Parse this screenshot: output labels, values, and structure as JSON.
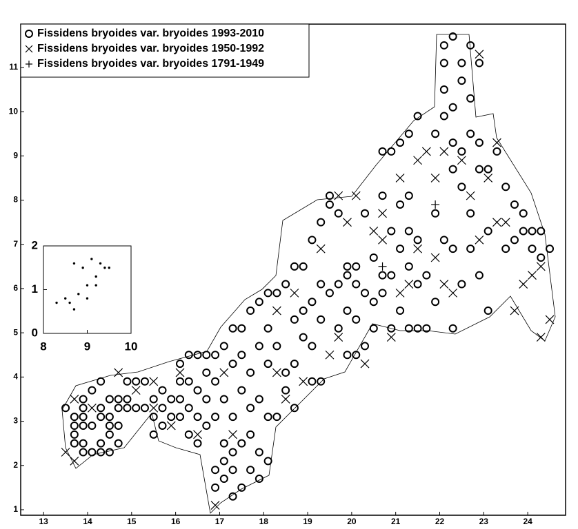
{
  "chart_data": [
    {
      "type": "scatter",
      "legend": "upper left",
      "xlim": [
        12.48,
        24.86
      ],
      "ylim": [
        0.875,
        11.98
      ],
      "xticks": [
        13,
        14,
        15,
        16,
        17,
        18,
        19,
        20,
        21,
        22,
        23,
        24
      ],
      "yticks": [
        1,
        2,
        3,
        4,
        5,
        6,
        7,
        8,
        9,
        10,
        11
      ],
      "series": [
        {
          "name": "Fissidens bryoides var. bryoides 1993-2010",
          "marker": "circle",
          "color": "#000000",
          "x": [
            13.5,
            13.7,
            13.7,
            13.7,
            13.7,
            13.9,
            13.9,
            13.9,
            13.9,
            13.9,
            13.9,
            14.1,
            14.1,
            14.1,
            14.3,
            14.3,
            14.3,
            14.3,
            14.3,
            14.5,
            14.5,
            14.5,
            14.5,
            14.5,
            14.7,
            14.7,
            14.7,
            14.7,
            14.9,
            14.9,
            14.9,
            15.1,
            15.1,
            15.3,
            15.3,
            15.5,
            15.5,
            15.5,
            15.7,
            15.7,
            15.7,
            15.9,
            15.9,
            16.1,
            16.1,
            16.1,
            16.1,
            16.3,
            16.3,
            16.3,
            16.3,
            16.5,
            16.5,
            16.5,
            16.5,
            16.7,
            16.7,
            16.7,
            16.7,
            16.9,
            16.9,
            16.9,
            16.9,
            16.9,
            17.1,
            17.1,
            17.1,
            17.1,
            17.1,
            17.3,
            17.3,
            17.3,
            17.3,
            17.3,
            17.3,
            17.5,
            17.5,
            17.5,
            17.5,
            17.5,
            17.7,
            17.7,
            17.7,
            17.7,
            17.7,
            17.9,
            17.9,
            17.9,
            17.9,
            17.9,
            18.1,
            18.1,
            18.1,
            18.1,
            18.1,
            18.3,
            18.3,
            18.3,
            18.5,
            18.5,
            18.5,
            18.7,
            18.7,
            18.7,
            18.7,
            18.9,
            18.9,
            18.9,
            19.1,
            19.1,
            19.1,
            19.1,
            19.3,
            19.3,
            19.3,
            19.3,
            19.5,
            19.5,
            19.5,
            19.7,
            19.7,
            19.7,
            19.9,
            19.9,
            19.9,
            19.9,
            20.1,
            20.1,
            20.1,
            20.1,
            20.3,
            20.3,
            20.3,
            20.5,
            20.5,
            20.5,
            20.7,
            20.7,
            20.7,
            20.7,
            20.9,
            20.9,
            20.9,
            20.9,
            21.1,
            21.1,
            21.1,
            21.1,
            21.3,
            21.3,
            21.3,
            21.3,
            21.3,
            21.5,
            21.5,
            21.5,
            21.5,
            21.7,
            21.7,
            21.9,
            21.9,
            21.9,
            22.1,
            22.1,
            22.1,
            22.1,
            22.1,
            22.3,
            22.3,
            22.3,
            22.3,
            22.3,
            22.3,
            22.5,
            22.5,
            22.5,
            22.5,
            22.5,
            22.7,
            22.7,
            22.7,
            22.7,
            22.7,
            22.9,
            22.9,
            22.9,
            22.9,
            23.1,
            23.1,
            23.1,
            23.3,
            23.5,
            23.5,
            23.7,
            23.7,
            23.9,
            23.9,
            24.1,
            24.1,
            24.3,
            24.3,
            24.5
          ],
          "values": [
            3.3,
            3.1,
            2.9,
            2.7,
            2.5,
            2.3,
            2.5,
            2.9,
            3.1,
            3.3,
            3.5,
            2.3,
            2.9,
            3.7,
            2.3,
            2.5,
            3.1,
            3.3,
            3.9,
            2.3,
            2.7,
            2.9,
            3.1,
            3.5,
            2.5,
            2.9,
            3.3,
            3.5,
            3.3,
            3.5,
            3.9,
            3.3,
            3.9,
            3.3,
            3.9,
            2.7,
            3.1,
            3.5,
            2.9,
            3.3,
            3.7,
            3.1,
            3.5,
            3.1,
            3.5,
            3.9,
            4.3,
            2.7,
            3.3,
            3.9,
            4.5,
            2.5,
            3.1,
            3.7,
            4.5,
            2.9,
            3.5,
            4.1,
            4.5,
            1.5,
            1.9,
            3.1,
            3.9,
            4.5,
            1.7,
            2.1,
            2.5,
            3.5,
            4.7,
            1.3,
            1.9,
            2.3,
            3.1,
            4.3,
            5.1,
            1.5,
            2.5,
            3.7,
            4.5,
            5.1,
            1.9,
            2.7,
            3.3,
            4.1,
            5.5,
            1.7,
            2.3,
            3.5,
            4.7,
            5.7,
            2.1,
            3.1,
            4.3,
            5.1,
            5.9,
            3.1,
            4.7,
            5.9,
            3.7,
            4.1,
            6.1,
            3.3,
            4.3,
            5.3,
            6.5,
            4.9,
            5.5,
            6.5,
            3.9,
            4.7,
            5.7,
            7.1,
            3.9,
            5.3,
            6.1,
            7.5,
            5.9,
            7.9,
            8.1,
            5.1,
            6.1,
            7.7,
            4.5,
            5.5,
            6.3,
            6.5,
            4.5,
            5.3,
            6.1,
            6.5,
            4.7,
            5.9,
            7.7,
            5.1,
            5.7,
            6.7,
            5.9,
            6.3,
            8.1,
            9.1,
            5.1,
            6.3,
            7.3,
            9.1,
            5.5,
            6.9,
            7.9,
            9.3,
            5.1,
            6.5,
            7.3,
            8.1,
            9.5,
            5.1,
            6.1,
            7.1,
            9.9,
            5.1,
            6.3,
            5.7,
            7.7,
            9.5,
            7.1,
            9.9,
            10.5,
            11.1,
            11.5,
            5.1,
            6.9,
            8.7,
            9.3,
            10.1,
            11.7,
            6.1,
            8.3,
            9.1,
            10.7,
            11.1,
            6.9,
            7.7,
            9.5,
            10.3,
            11.5,
            6.3,
            8.7,
            9.3,
            11.1,
            5.5,
            7.3,
            8.7,
            9.1,
            6.9,
            8.3,
            7.1,
            7.9,
            7.3,
            7.7,
            6.9,
            7.3,
            6.7,
            7.3,
            6.9
          ]
        },
        {
          "name": "Fissidens bryoides var. bryoides 1950-1992",
          "marker": "cross",
          "color": "#000000",
          "x": [
            13.5,
            13.7,
            13.7,
            14.1,
            14.7,
            15.1,
            15.5,
            15.9,
            16.5,
            16.9,
            17.1,
            18.3,
            18.3,
            18.5,
            18.7,
            18.9,
            19.3,
            19.5,
            19.7,
            19.7,
            19.9,
            20.1,
            20.3,
            20.5,
            20.7,
            20.7,
            20.9,
            21.1,
            21.1,
            21.3,
            21.5,
            21.5,
            21.7,
            21.9,
            21.9,
            22.1,
            22.3,
            22.5,
            22.7,
            22.9,
            23.1,
            23.3,
            23.3,
            23.5,
            23.7,
            23.9,
            24.1,
            24.3,
            24.5,
            24.3,
            22.9,
            22.1,
            17.3,
            16.1,
            15.5
          ],
          "values": [
            2.3,
            2.1,
            3.5,
            3.3,
            4.1,
            3.7,
            3.3,
            2.9,
            2.7,
            1.1,
            4.1,
            5.5,
            4.1,
            3.5,
            5.9,
            3.9,
            6.9,
            4.5,
            4.9,
            8.1,
            7.5,
            8.1,
            4.3,
            7.3,
            7.7,
            7.1,
            4.9,
            5.9,
            8.5,
            6.1,
            6.9,
            8.9,
            9.1,
            6.7,
            8.5,
            6.1,
            5.9,
            8.9,
            8.1,
            7.1,
            8.5,
            9.3,
            7.5,
            7.5,
            5.5,
            6.1,
            6.3,
            6.5,
            5.3,
            4.9,
            11.3,
            9.1,
            2.7,
            4.1,
            3.9
          ]
        },
        {
          "name": "Fissidens bryoides var. bryoides 1791-1949",
          "marker": "plus",
          "color": "#000000",
          "x": [
            20.7,
            21.9
          ],
          "values": [
            6.5,
            7.9
          ]
        }
      ]
    },
    {
      "type": "scatter",
      "marker": "dot",
      "color": "#000000",
      "xlim": [
        8,
        10
      ],
      "ylim": [
        0,
        2
      ],
      "xticks": [
        8,
        9,
        10
      ],
      "yticks": [
        0,
        1,
        2
      ],
      "x": [
        8.3,
        8.6,
        8.7,
        8.8,
        8.9,
        9.0,
        9.0,
        9.1,
        9.2,
        9.2,
        9.3,
        9.4,
        8.7,
        9.5,
        8.5
      ],
      "values": [
        0.7,
        0.7,
        0.55,
        0.9,
        1.5,
        1.1,
        0.8,
        1.7,
        1.3,
        1.1,
        1.6,
        1.5,
        1.6,
        1.5,
        0.8
      ]
    }
  ]
}
